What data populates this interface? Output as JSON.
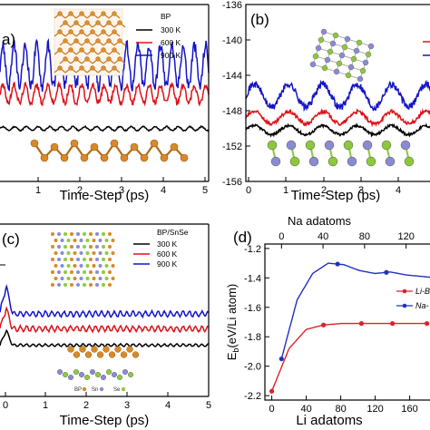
{
  "chart_data": [
    {
      "panel": "a)",
      "type": "line",
      "xlabel": "Time-Step (ps)",
      "ylabel": "",
      "xlim": [
        0,
        5
      ],
      "x_ticks": [
        "1",
        "2",
        "3",
        "4",
        "5"
      ],
      "y_ticks": [],
      "legend_title": "BP",
      "legend_position": "top-right",
      "series": [
        {
          "name": "300 K",
          "color": "#000000",
          "base": 0.05,
          "amp": 0.015,
          "period": 0.28,
          "x": [
            0,
            0.3,
            1,
            2,
            3,
            4,
            5
          ],
          "y": [
            0.05,
            0.05,
            0.05,
            0.05,
            0.05,
            0.05,
            0.05
          ]
        },
        {
          "name": "600 K",
          "color": "#e0101a",
          "base": 0.32,
          "amp": 0.07,
          "period": 0.27,
          "x": [
            0,
            0.3,
            1,
            2,
            3,
            4,
            5
          ],
          "y": [
            0.32,
            0.32,
            0.32,
            0.32,
            0.32,
            0.32,
            0.32
          ]
        },
        {
          "name": "900 K",
          "color": "#1414c8",
          "base": 0.54,
          "amp": 0.16,
          "period": 0.27,
          "x": [
            0,
            0.3,
            1,
            2,
            3,
            4,
            5
          ],
          "y": [
            0.54,
            0.54,
            0.54,
            0.54,
            0.54,
            0.54,
            0.54
          ]
        }
      ]
    },
    {
      "panel": "(b)",
      "type": "line",
      "xlabel": "Time-Step (ps)",
      "ylabel": "",
      "xlim": [
        0,
        5
      ],
      "ylim": [
        -156,
        -136
      ],
      "x_ticks": [
        "0",
        "1",
        "2",
        "3",
        "4"
      ],
      "y_ticks": [
        "-136",
        "-140",
        "-144",
        "-148",
        "-152",
        "-156"
      ],
      "series": [
        {
          "name": "",
          "color": "#000000",
          "base": -150.2,
          "amp": 0.5,
          "period": 0.9,
          "x": [
            0,
            0.5,
            1,
            2,
            3,
            4,
            5
          ],
          "y": [
            -150.2,
            -150.2,
            -150.2,
            -150.2,
            -150.2,
            -150.2,
            -150.2
          ]
        },
        {
          "name": "",
          "color": "#e0101a",
          "base": -148.8,
          "amp": 0.7,
          "period": 0.9,
          "x": [
            0,
            0.5,
            1,
            2,
            3,
            4,
            5
          ],
          "y": [
            -148.8,
            -148.8,
            -148.8,
            -148.8,
            -148.8,
            -148.8,
            -148.8
          ]
        },
        {
          "name": "",
          "color": "#1414c8",
          "base": -146.3,
          "amp": 1.3,
          "period": 0.9,
          "x": [
            0,
            0.5,
            1,
            2,
            3,
            4,
            5
          ],
          "y": [
            -146.3,
            -146.3,
            -146.3,
            -146.3,
            -146.3,
            -146.3,
            -146.3
          ]
        }
      ]
    },
    {
      "panel": "(c)",
      "type": "line",
      "xlabel": "Time-Step (ps)",
      "ylabel": "",
      "xlim": [
        0,
        5
      ],
      "x_ticks": [
        "0",
        "1",
        "2",
        "3",
        "4",
        "5"
      ],
      "y_ticks": [],
      "legend_title": "BP/SnSe",
      "legend_position": "top-right",
      "series": [
        {
          "name": "300 K",
          "color": "#000000",
          "base": 0.1,
          "amp": 0.015,
          "period": 0.15,
          "x": [
            0,
            0.15,
            0.3,
            5
          ],
          "y": [
            0.1,
            0.28,
            0.1,
            0.1
          ]
        },
        {
          "name": "600 K",
          "color": "#e0101a",
          "base": 0.3,
          "amp": 0.03,
          "period": 0.15,
          "x": [
            0,
            0.15,
            0.3,
            5
          ],
          "y": [
            0.3,
            0.55,
            0.3,
            0.3
          ]
        },
        {
          "name": "900 K",
          "color": "#1414c8",
          "base": 0.48,
          "amp": 0.03,
          "period": 0.15,
          "x": [
            0,
            0.15,
            0.3,
            5
          ],
          "y": [
            0.5,
            0.82,
            0.48,
            0.48
          ]
        }
      ],
      "inset_labels": [
        "BP",
        "Sn",
        "Se"
      ]
    },
    {
      "panel": "(d)",
      "type": "line",
      "xlabel": "Li adatoms",
      "ylabel": "E_b (eV/Li atom)",
      "ylabel_main": "E",
      "ylabel_sub": "b",
      "ylabel_rest": "(eV/Li atom)",
      "x2label": "Na adatoms",
      "xlim": [
        -8,
        192
      ],
      "x2lim": [
        -16,
        150
      ],
      "ylim": [
        -2.23,
        -1.17
      ],
      "x_ticks": [
        0,
        40,
        80,
        120,
        160
      ],
      "x2_ticks": [
        0,
        40,
        80,
        120
      ],
      "y_ticks": [
        -1.2,
        -1.4,
        -1.6,
        -1.8,
        -2.0,
        -2.2
      ],
      "y_tick_labels": [
        "-1.2",
        "-1.4",
        "-1.6",
        "-1.8",
        "-2.0",
        "-2.2"
      ],
      "legend_position": "right",
      "series": [
        {
          "name": "Li-B",
          "color": "#e0202a",
          "axis": "x",
          "x": [
            0,
            20,
            40,
            60,
            80,
            100,
            120,
            140,
            160,
            180
          ],
          "y": [
            -2.17,
            -1.88,
            -1.75,
            -1.72,
            -1.71,
            -1.71,
            -1.71,
            -1.71,
            -1.71,
            -1.71
          ],
          "markers_x": [
            0,
            60,
            104,
            140,
            180
          ]
        },
        {
          "name": "Na-",
          "color": "#2030c0",
          "axis": "x2",
          "x": [
            0,
            15,
            30,
            45,
            60,
            75,
            90,
            105,
            120,
            135,
            150
          ],
          "y": [
            -1.95,
            -1.55,
            -1.37,
            -1.3,
            -1.31,
            -1.35,
            -1.37,
            -1.36,
            -1.38,
            -1.39,
            -1.4
          ],
          "markers_x": [
            0,
            54,
            101,
            150
          ]
        }
      ]
    }
  ]
}
